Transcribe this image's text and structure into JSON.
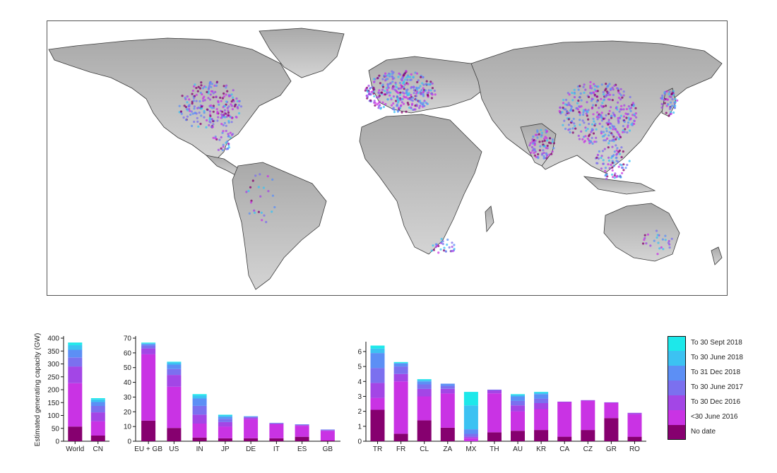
{
  "colors": {
    "no_date": "#86006f",
    "lt_30_june_2016": "#c933e4",
    "to_30_dec_2016": "#a346e6",
    "to_30_june_2017": "#7b70ef",
    "to_31_dec_2018": "#5c8ff5",
    "to_30_june_2018": "#3cc2f2",
    "to_30_sept_2018": "#1de8ea",
    "land": "#c8c8c8",
    "border": "#3a3a3a"
  },
  "map": {
    "description_icon": "world-map-icon"
  },
  "legend": {
    "items": [
      {
        "label": "To 30 Sept 2018",
        "color": "#1de8ea"
      },
      {
        "label": "To 30 June 2018",
        "color": "#3cc2f2"
      },
      {
        "label": "To 31 Dec 2018",
        "color": "#5c8ff5"
      },
      {
        "label": "To 30 June 2017",
        "color": "#7b70ef"
      },
      {
        "label": "To 30 Dec 2016",
        "color": "#a346e6"
      },
      {
        "label": "<30 June 2016",
        "color": "#c933e4"
      },
      {
        "label": "No date",
        "color": "#86006f"
      }
    ]
  },
  "chart_data": [
    {
      "type": "bar",
      "stacked": true,
      "ylabel": "Estimated generating capacity (GW)",
      "ylim": [
        0,
        400
      ],
      "yticks": [
        0,
        50,
        100,
        150,
        200,
        250,
        300,
        350,
        400
      ],
      "categories": [
        "World",
        "CN"
      ],
      "series": [
        {
          "name": "No date",
          "values": [
            57,
            22
          ]
        },
        {
          "name": "<30 June 2016",
          "values": [
            168,
            55
          ]
        },
        {
          "name": "To 30 Dec 2016",
          "values": [
            65,
            35
          ]
        },
        {
          "name": "To 30 June 2017",
          "values": [
            35,
            25
          ]
        },
        {
          "name": "To 31 Dec 2018",
          "values": [
            30,
            15
          ]
        },
        {
          "name": "To 30 June 2018",
          "values": [
            18,
            10
          ]
        },
        {
          "name": "To 30 Sept 2018",
          "values": [
            10,
            5
          ]
        }
      ]
    },
    {
      "type": "bar",
      "stacked": true,
      "ylim": [
        0,
        70
      ],
      "yticks": [
        0,
        10,
        20,
        30,
        40,
        50,
        60,
        70
      ],
      "categories": [
        "EU + GB",
        "US",
        "IN",
        "JP",
        "DE",
        "IT",
        "ES",
        "GB"
      ],
      "series": [
        {
          "name": "No date",
          "values": [
            14,
            9,
            2.5,
            2,
            2,
            2,
            3,
            0.5
          ]
        },
        {
          "name": "<30 June 2016",
          "values": [
            45,
            28,
            9.5,
            8,
            13,
            9.5,
            7.5,
            6.5
          ]
        },
        {
          "name": "To 30 Dec 2016",
          "values": [
            4,
            8,
            6,
            3,
            1,
            0.5,
            0.5,
            0.5
          ]
        },
        {
          "name": "To 30 June 2017",
          "values": [
            2,
            4,
            6,
            2,
            0.5,
            0.3,
            0.3,
            0.3
          ]
        },
        {
          "name": "To 31 Dec 2018",
          "values": [
            1,
            3,
            5,
            1.5,
            0.3,
            0.2,
            0.2,
            0.2
          ]
        },
        {
          "name": "To 30 June 2018",
          "values": [
            0.5,
            1.5,
            2,
            1,
            0.2,
            0,
            0,
            0
          ]
        },
        {
          "name": "To 30 Sept 2018",
          "values": [
            0.5,
            0.5,
            1,
            0.5,
            0,
            0,
            0,
            0
          ]
        }
      ]
    },
    {
      "type": "bar",
      "stacked": true,
      "ylim": [
        0,
        6.8
      ],
      "yticks": [
        0,
        1,
        2,
        3,
        4,
        5,
        6
      ],
      "categories": [
        "TR",
        "FR",
        "CL",
        "ZA",
        "MX",
        "TH",
        "AU",
        "KR",
        "CA",
        "CZ",
        "GR",
        "RO"
      ],
      "series": [
        {
          "name": "No date",
          "values": [
            2.1,
            0.5,
            1.4,
            0.9,
            0,
            0.6,
            0.7,
            0.75,
            0.3,
            0.75,
            1.55,
            0.3
          ]
        },
        {
          "name": "<30 June 2016",
          "values": [
            0.8,
            3.5,
            1.6,
            2.3,
            0.2,
            2.6,
            1.3,
            1.4,
            2.3,
            1.95,
            1.0,
            1.5
          ]
        },
        {
          "name": "To 30 Dec 2016",
          "values": [
            1.0,
            0.5,
            0.5,
            0.3,
            0.1,
            0.2,
            0.4,
            0.4,
            0.05,
            0.05,
            0.05,
            0.1
          ]
        },
        {
          "name": "To 30 June 2017",
          "values": [
            1.0,
            0.5,
            0.3,
            0.2,
            0.2,
            0.05,
            0.3,
            0.3,
            0.0,
            0.0,
            0.0,
            0.0
          ]
        },
        {
          "name": "To 31 Dec 2018",
          "values": [
            1.0,
            0.2,
            0.2,
            0.15,
            0.3,
            0,
            0.3,
            0.3,
            0,
            0,
            0,
            0
          ]
        },
        {
          "name": "To 30 June 2018",
          "values": [
            0.3,
            0.05,
            0.1,
            0,
            1.6,
            0,
            0.1,
            0.1,
            0,
            0,
            0,
            0
          ]
        },
        {
          "name": "To 30 Sept 2018",
          "values": [
            0.2,
            0.05,
            0.05,
            0,
            0.9,
            0,
            0.05,
            0.05,
            0,
            0,
            0,
            0
          ]
        }
      ]
    }
  ]
}
